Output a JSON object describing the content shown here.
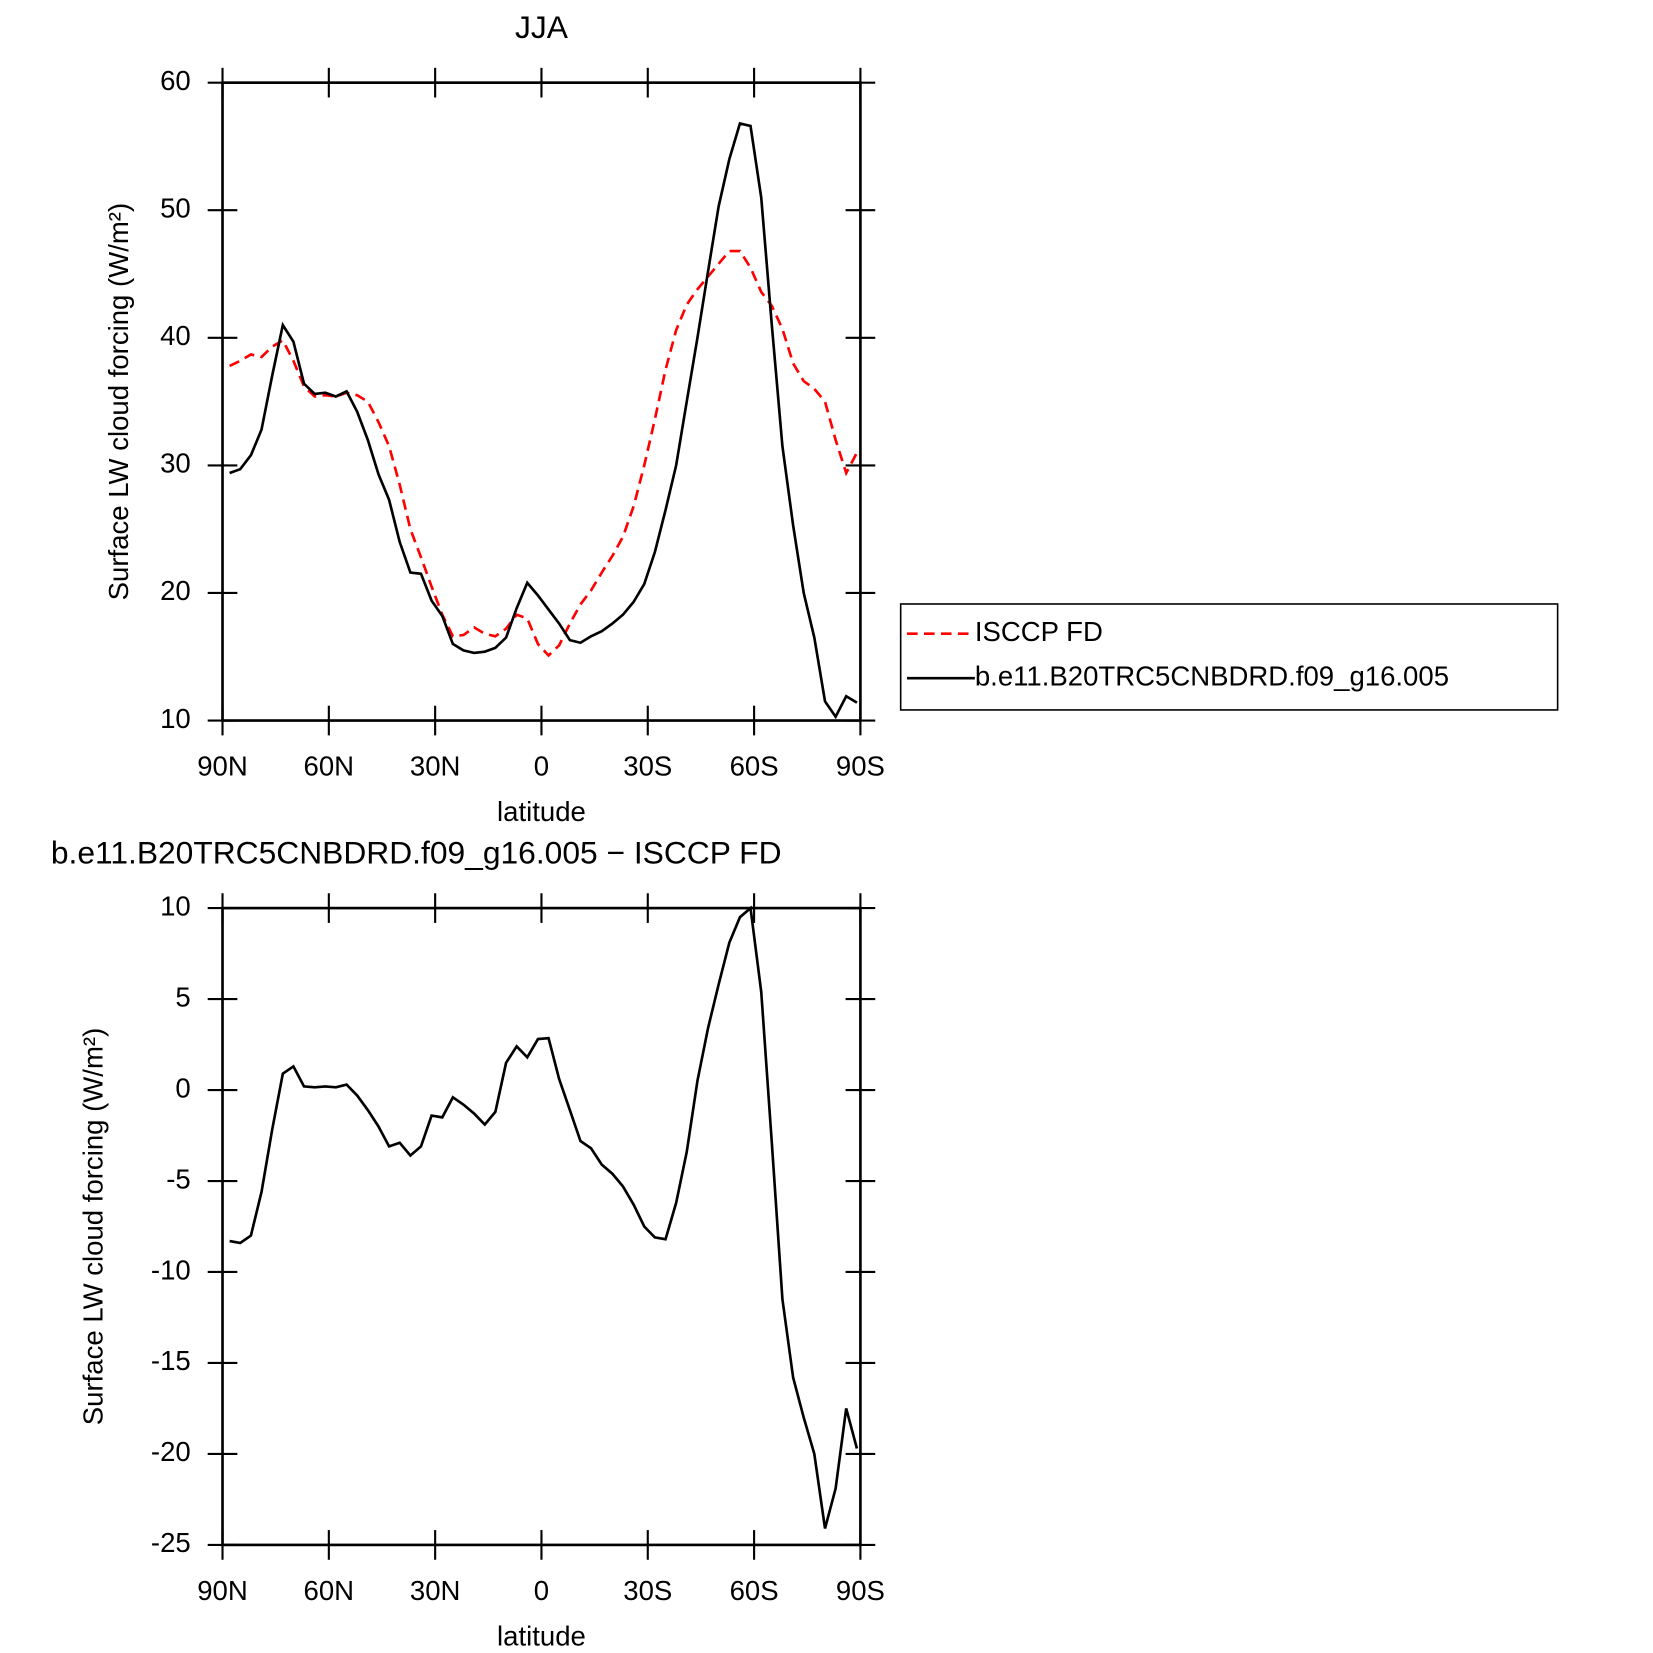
{
  "chart_data": [
    {
      "type": "line",
      "title": "JJA",
      "x_label": "latitude",
      "y_label": "Surface LW cloud forcing (W/m²)",
      "x": [
        88,
        85,
        82,
        79,
        76,
        73,
        70,
        67,
        64,
        61,
        58,
        55,
        52,
        49,
        46,
        43,
        40,
        37,
        34,
        31,
        28,
        25,
        22,
        19,
        16,
        13,
        10,
        7,
        4,
        1,
        -2,
        -5,
        -8,
        -11,
        -14,
        -17,
        -20,
        -23,
        -26,
        -29,
        -32,
        -35,
        -38,
        -41,
        -44,
        -47,
        -50,
        -53,
        -56,
        -59,
        -62,
        -65,
        -68,
        -71,
        -74,
        -77,
        -80,
        -83,
        -86,
        -89
      ],
      "series": [
        {
          "name": "ISCCP FD",
          "color": "#ff0000",
          "dashed": true,
          "values": [
            37.8,
            38.2,
            38.7,
            38.5,
            39.3,
            39.8,
            38.2,
            36.2,
            35.4,
            35.5,
            35.4,
            35.7,
            35.5,
            35,
            33.4,
            31.5,
            28.5,
            25,
            22.8,
            20.5,
            18.3,
            16.6,
            16.7,
            17.3,
            16.8,
            16.6,
            17.2,
            18.3,
            18,
            16,
            15.1,
            15.9,
            17.6,
            19.1,
            20.2,
            21.6,
            22.9,
            24.4,
            26.8,
            30,
            33.6,
            37.5,
            40.6,
            42.6,
            43.8,
            44.8,
            45.8,
            46.8,
            46.8,
            45.5,
            43.6,
            42.5,
            40.7,
            38,
            36.6,
            36,
            35,
            32,
            29.4,
            31
          ]
        },
        {
          "name": "b.e11.B20TRC5CNBDRD.f09_g16.005",
          "color": "#000000",
          "dashed": false,
          "values": [
            29.4,
            29.7,
            30.8,
            32.8,
            37,
            41,
            39.7,
            36.4,
            35.6,
            35.7,
            35.4,
            35.8,
            34.2,
            32,
            29.3,
            27.3,
            24,
            21.6,
            21.5,
            19.4,
            18.2,
            16,
            15.5,
            15.3,
            15.4,
            15.7,
            16.5,
            18.8,
            20.8,
            19.8,
            18.7,
            17.6,
            16.3,
            16.1,
            16.6,
            17,
            17.6,
            18.3,
            19.3,
            20.7,
            23.2,
            26.5,
            30,
            35,
            40,
            45.2,
            50.3,
            54,
            56.8,
            56.6,
            51,
            41,
            31.5,
            25.3,
            20,
            16.5,
            11.5,
            10.3,
            11.9,
            11.4
          ]
        }
      ],
      "xlim": [
        90,
        -90
      ],
      "xticks": [
        {
          "value": 90,
          "label": "90N"
        },
        {
          "value": 60,
          "label": "60N"
        },
        {
          "value": 30,
          "label": "30N"
        },
        0,
        {
          "value": -30,
          "label": "30S"
        },
        {
          "value": -60,
          "label": "60S"
        },
        {
          "value": -90,
          "label": "90S"
        }
      ],
      "ylim": [
        10,
        60
      ],
      "yticks": [
        10,
        20,
        30,
        40,
        50,
        60
      ],
      "legend": "outside-right"
    },
    {
      "type": "line",
      "title": "b.e11.B20TRC5CNBDRD.f09_g16.005 − ISCCP FD",
      "x_label": "latitude",
      "y_label": "Surface LW cloud forcing (W/m²)",
      "x": [
        88,
        85,
        82,
        79,
        76,
        73,
        70,
        67,
        64,
        61,
        58,
        55,
        52,
        49,
        46,
        43,
        40,
        37,
        34,
        31,
        28,
        25,
        22,
        19,
        16,
        13,
        10,
        7,
        4,
        1,
        -2,
        -5,
        -8,
        -11,
        -14,
        -17,
        -20,
        -23,
        -26,
        -29,
        -32,
        -35,
        -38,
        -41,
        -44,
        -47,
        -50,
        -53,
        -56,
        -59,
        -62,
        -65,
        -68,
        -71,
        -74,
        -77,
        -80,
        -83,
        -86,
        -89
      ],
      "color": "#000000",
      "values": [
        -8.3,
        -8.4,
        -8,
        -5.6,
        -2.2,
        0.9,
        1.3,
        0.2,
        0.15,
        0.2,
        0.15,
        0.3,
        -0.3,
        -1.1,
        -2,
        -3.1,
        -2.9,
        -3.6,
        -3.1,
        -1.4,
        -1.5,
        -0.4,
        -0.8,
        -1.3,
        -1.9,
        -1.2,
        1.5,
        2.4,
        1.8,
        2.8,
        2.85,
        0.6,
        -1.1,
        -2.8,
        -3.2,
        -4.1,
        -4.6,
        -5.3,
        -6.3,
        -7.5,
        -8.1,
        -8.2,
        -6.2,
        -3.4,
        0.5,
        3.4,
        5.8,
        8.1,
        9.5,
        10,
        5.4,
        -2.9,
        -11.5,
        -15.8,
        -18,
        -20,
        -24.1,
        -21.9,
        -17.5,
        -19.7
      ],
      "xlim": [
        90,
        -90
      ],
      "xticks": [
        {
          "value": 90,
          "label": "90N"
        },
        {
          "value": 60,
          "label": "60N"
        },
        {
          "value": 30,
          "label": "30N"
        },
        0,
        {
          "value": -30,
          "label": "30S"
        },
        {
          "value": -60,
          "label": "60S"
        },
        {
          "value": -90,
          "label": "90S"
        }
      ],
      "ylim": [
        -25,
        10
      ],
      "yticks": [
        -25,
        -20,
        -15,
        -10,
        -5,
        0,
        5,
        10
      ]
    }
  ]
}
